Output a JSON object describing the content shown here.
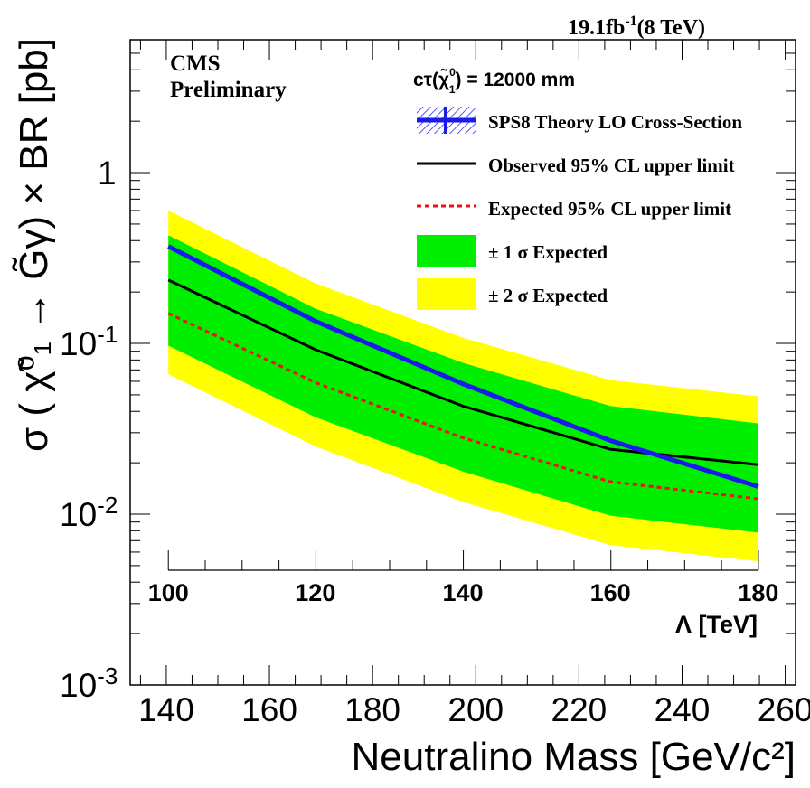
{
  "chart_data": {
    "type": "line",
    "title_lumi": "19.1fb",
    "title_lumi_exp": "-1",
    "title_energy": "(8 TeV)",
    "experiment": "CMS",
    "status": "Preliminary",
    "ctau_prefix": "cτ(",
    "ctau_particle": "χ̃",
    "ctau_sup": "0",
    "ctau_sub": "1",
    "ctau_value": ")  = 12000 mm",
    "ylabel": "σ ( χ̃⁰₁ → G̃γ) × BR [pb]",
    "xlabel": "Neutralino Mass [GeV/c²]",
    "x2label": "Λ [TeV]",
    "yscale": "log",
    "ylim": [
      0.001,
      6
    ],
    "xlim": [
      133,
      262
    ],
    "x_ticks": [
      "140",
      "160",
      "180",
      "200",
      "220",
      "240",
      "260"
    ],
    "y_ticks": [
      {
        "base": "1",
        "exp": "",
        "value": 1
      },
      {
        "base": "10",
        "exp": "-1",
        "value": 0.1
      },
      {
        "base": "10",
        "exp": "-2",
        "value": 0.01
      },
      {
        "base": "10",
        "exp": "-3",
        "value": 0.001
      }
    ],
    "lambda_axis": {
      "ticks": [
        "100",
        "120",
        "140",
        "160",
        "180"
      ],
      "lambda_values": [
        100,
        120,
        140,
        160,
        180
      ],
      "mass_values": [
        140.4,
        168.9,
        197.5,
        226.1,
        254.8
      ]
    },
    "legend": [
      {
        "key": "theory",
        "label": "SPS8 Theory LO Cross-Section"
      },
      {
        "key": "observed",
        "label": "Observed  95% CL upper limit"
      },
      {
        "key": "expected",
        "label": "Expected 95% CL upper limit"
      },
      {
        "key": "band1",
        "label": "± 1 σ Expected"
      },
      {
        "key": "band2",
        "label": "± 2 σ Expected"
      }
    ],
    "colors": {
      "theory": "#1a1aee",
      "observed": "#000000",
      "expected": "#ee1111",
      "band1": "#00ee00",
      "band2": "#ffff00"
    },
    "x": [
      140.4,
      168.9,
      197.5,
      226.1,
      254.8
    ],
    "series": [
      {
        "name": "SPS8 Theory LO Cross-Section",
        "values": [
          0.37,
          0.135,
          0.058,
          0.027,
          0.0145
        ]
      },
      {
        "name": "Observed  95% CL upper limit",
        "values": [
          0.235,
          0.092,
          0.043,
          0.024,
          0.0195
        ]
      },
      {
        "name": "Expected 95% CL upper limit",
        "values": [
          0.15,
          0.059,
          0.028,
          0.0155,
          0.0123
        ]
      }
    ],
    "band_1sigma": {
      "low": [
        0.097,
        0.037,
        0.0178,
        0.0098,
        0.0078
      ],
      "high": [
        0.43,
        0.16,
        0.077,
        0.043,
        0.034
      ]
    },
    "band_2sigma": {
      "low": [
        0.066,
        0.025,
        0.0118,
        0.0066,
        0.0053
      ],
      "high": [
        0.6,
        0.225,
        0.108,
        0.061,
        0.049
      ]
    }
  }
}
